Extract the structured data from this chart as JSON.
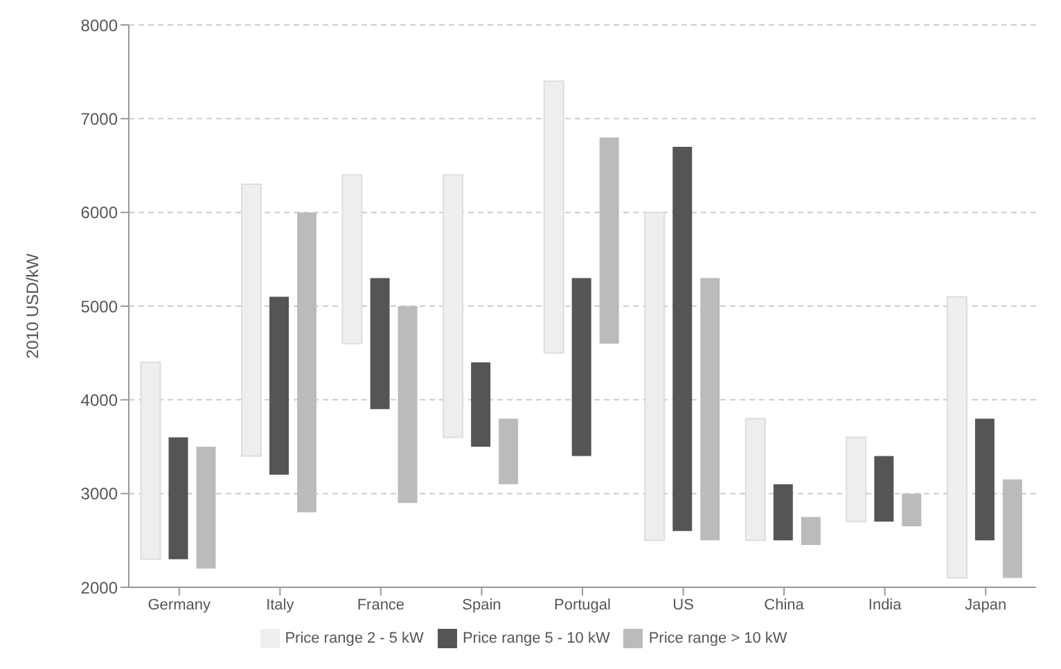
{
  "chart_data": {
    "type": "bar",
    "ylabel": "2010 USD/kW",
    "categories": [
      "Germany",
      "Italy",
      "France",
      "Spain",
      "Portugal",
      "US",
      "China",
      "India",
      "Japan"
    ],
    "series": [
      {
        "name": "Price range 2 - 5 kW",
        "color": "#eeeeee",
        "base": [
          2300,
          3400,
          4600,
          3600,
          4500,
          2500,
          2500,
          2700,
          2100
        ],
        "values": [
          2100,
          2900,
          1800,
          2800,
          2900,
          3500,
          1300,
          900,
          3000
        ]
      },
      {
        "name": "Price range 5 - 10 kW",
        "color": "#555555",
        "base": [
          2300,
          3200,
          3900,
          3500,
          3400,
          2600,
          2500,
          2700,
          2500
        ],
        "values": [
          1300,
          1900,
          1400,
          900,
          1900,
          4100,
          600,
          700,
          1300
        ]
      },
      {
        "name": "Price range > 10 kW",
        "color": "#bbbbbb",
        "base": [
          2200,
          2800,
          2900,
          3100,
          4600,
          2500,
          2450,
          2650,
          2100
        ],
        "values": [
          1300,
          3200,
          2100,
          700,
          2200,
          2800,
          300,
          350,
          1050
        ]
      }
    ],
    "ylim": [
      2000,
      8000
    ],
    "yticks": [
      2000,
      3000,
      4000,
      5000,
      6000,
      7000,
      8000
    ],
    "grid": "y",
    "legend": "bottom"
  }
}
